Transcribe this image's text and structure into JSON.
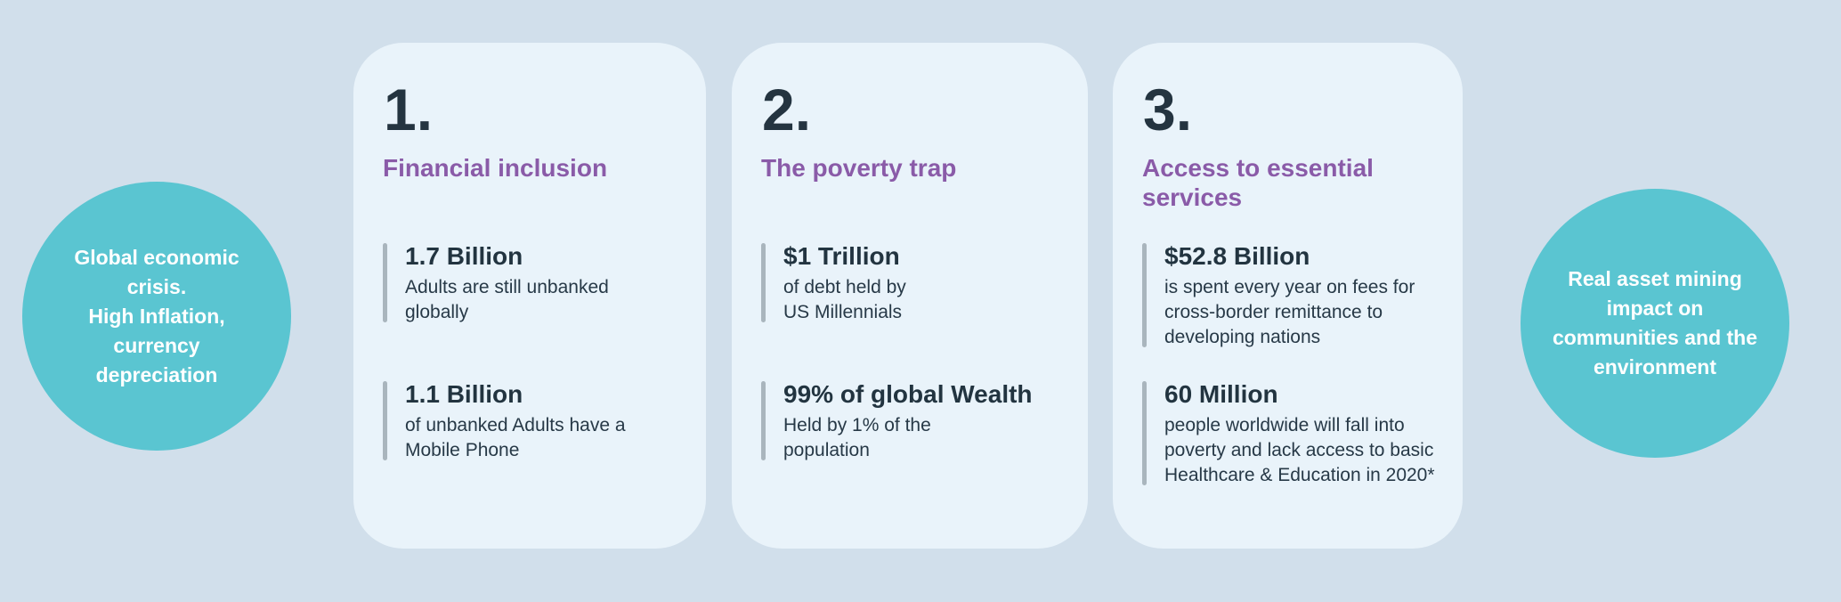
{
  "colors": {
    "background": "#d1dfeb",
    "card_background": "#e9f3fa",
    "circle_teal": "#5ac5d1",
    "heading_purple": "#8a5ba8",
    "text_navy": "#243440",
    "stat_bar_gray": "#a9b5bd",
    "circle_text": "#ffffff"
  },
  "left_circle": {
    "text": "Global economic\ncrisis.\nHigh Inflation,\ncurrency\ndepreciation"
  },
  "right_circle": {
    "text": "Real asset  mining\nimpact on\ncommunities and the\nenvironment"
  },
  "cards": [
    {
      "number": "1.",
      "heading": "Financial inclusion",
      "stats": [
        {
          "value": "1.7 Billion",
          "description": "Adults are still unbanked\nglobally"
        },
        {
          "value": "1.1 Billion",
          "description": "of unbanked Adults have a\nMobile Phone"
        }
      ]
    },
    {
      "number": "2.",
      "heading": "The poverty trap",
      "stats": [
        {
          "value": "$1 Trillion",
          "description": "of debt held by\nUS Millennials"
        },
        {
          "value": "99% of global Wealth",
          "description": "Held by 1% of the\npopulation"
        }
      ]
    },
    {
      "number": "3.",
      "heading": "Access to essential\nservices",
      "stats": [
        {
          "value": "$52.8 Billion",
          "description": "is spent every year on fees for\ncross-border remittance to\ndeveloping nations"
        },
        {
          "value": "60 Million",
          "description": "people worldwide will fall into\npoverty and lack access to basic\nHealthcare & Education in 2020*"
        }
      ]
    }
  ]
}
